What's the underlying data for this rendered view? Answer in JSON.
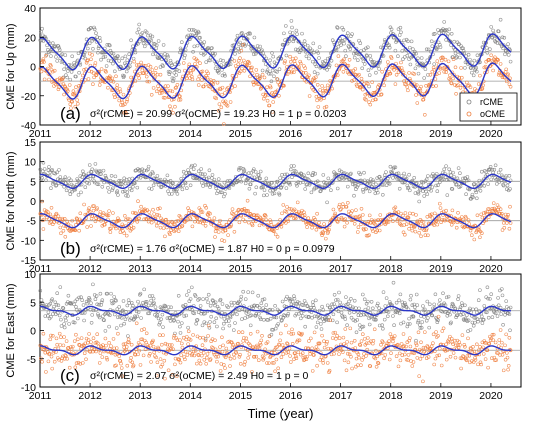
{
  "chart_data": [
    {
      "type": "scatter",
      "panel_label": "(a)",
      "ylabel": "CME for Up (mm)",
      "ylim": [
        -40,
        40
      ],
      "yticks": [
        -40,
        -20,
        0,
        20,
        40
      ],
      "xlim": [
        2011,
        2020.6
      ],
      "xticks": [
        "2011",
        "2012",
        "2013",
        "2014",
        "2015",
        "2016",
        "2017",
        "2018",
        "2019",
        "2020"
      ],
      "annotation": "σ²(rCME) = 20.99  σ²(oCME) = 19.23  H0 = 1 p = 0.0203",
      "legend": {
        "entries": [
          "rCME",
          "oCME"
        ],
        "placement": "lower-right"
      },
      "reference_lines": [
        10,
        -10
      ],
      "series": [
        {
          "name": "rCME",
          "color": "#7f7f7f",
          "mean": 10,
          "annual_amp": 10,
          "semi_amp": 2.5,
          "trend_per_year": 0.3,
          "noise_sd": 4.5
        },
        {
          "name": "oCME",
          "color": "#ee7b3a",
          "mean": -10,
          "annual_amp": 10,
          "semi_amp": 2.5,
          "trend_per_year": 0.3,
          "noise_sd": 4.5
        }
      ],
      "fit_color": "#2a35c8"
    },
    {
      "type": "scatter",
      "panel_label": "(b)",
      "ylabel": "CME for North (mm)",
      "ylim": [
        -15,
        15
      ],
      "yticks": [
        -15,
        -10,
        -5,
        0,
        5,
        10,
        15
      ],
      "xlim": [
        2011,
        2020.6
      ],
      "xticks": [
        "2011",
        "2012",
        "2013",
        "2014",
        "2015",
        "2016",
        "2017",
        "2018",
        "2019",
        "2020"
      ],
      "annotation": "σ²(rCME) = 1.76  σ²(oCME) = 1.87  H0 = 0 p = 0.0979",
      "reference_lines": [
        5,
        -5
      ],
      "series": [
        {
          "name": "rCME",
          "color": "#7f7f7f",
          "mean": 5,
          "annual_amp": 1.6,
          "semi_amp": 0.4,
          "trend_per_year": 0,
          "noise_sd": 1.3
        },
        {
          "name": "oCME",
          "color": "#ee7b3a",
          "mean": -5,
          "annual_amp": 1.6,
          "semi_amp": 0.4,
          "trend_per_year": 0,
          "noise_sd": 1.3
        }
      ],
      "fit_color": "#2a35c8"
    },
    {
      "type": "scatter",
      "panel_label": "(c)",
      "ylabel": "CME for East (mm)",
      "ylim": [
        -10,
        10
      ],
      "yticks": [
        -10,
        -5,
        0,
        5,
        10
      ],
      "xlim": [
        2011,
        2020.6
      ],
      "xticks": [
        "2011",
        "2012",
        "2013",
        "2014",
        "2015",
        "2016",
        "2017",
        "2018",
        "2019",
        "2020"
      ],
      "xlabel": "Time (year)",
      "annotation": "σ²(rCME) = 2.07  σ²(oCME) = 2.49  H0 = 1 p = 0",
      "reference_lines": [
        3.5,
        -3.5
      ],
      "series": [
        {
          "name": "rCME",
          "color": "#7f7f7f",
          "mean": 3.5,
          "annual_amp": 0.6,
          "semi_amp": 0.3,
          "trend_per_year": 0,
          "noise_sd": 1.5
        },
        {
          "name": "oCME",
          "color": "#ee7b3a",
          "mean": -3.5,
          "annual_amp": 0.6,
          "semi_amp": 0.3,
          "trend_per_year": 0,
          "noise_sd": 1.6
        }
      ],
      "fit_color": "#2a35c8"
    }
  ]
}
